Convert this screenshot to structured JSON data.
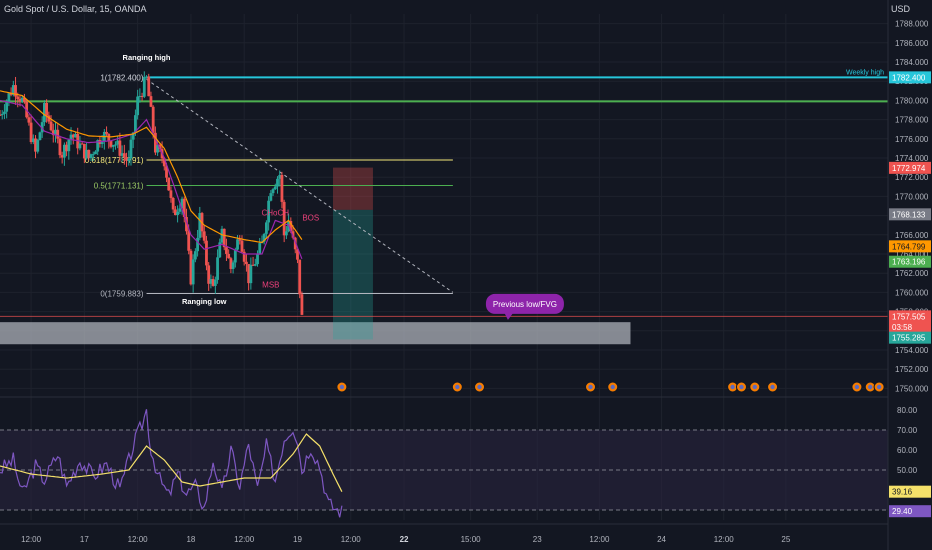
{
  "header": {
    "symbol_title": "Gold Spot / U.S. Dollar, 15, OANDA",
    "currency": "USD"
  },
  "colors": {
    "background": "#131722",
    "grid": "#1e222d",
    "text": "#b2b5be",
    "candle_up": "#26a69a",
    "candle_down": "#ef5350",
    "ema_fast": "#9c27b0",
    "ema_slow": "#ff9800",
    "weekly_high": "#26c6da",
    "level_green": "#4caf50",
    "fib": "#f5e87a",
    "zone": "#b2b5be",
    "rsi_line": "#7e57c2",
    "rsi_ma": "#f5e16a",
    "rsi_band": "#2a2540"
  },
  "chart_data": [
    {
      "type": "candlestick",
      "title": "Gold Spot / U.S. Dollar, 15, OANDA",
      "ylim": [
        1749,
        1789
      ],
      "yticks": [
        1750,
        1752,
        1754,
        1756,
        1758,
        1760,
        1762,
        1764,
        1766,
        1768,
        1770,
        1772,
        1774,
        1776,
        1778,
        1780,
        1782,
        1784,
        1786,
        1788
      ],
      "ytick_labels": [
        "1750.000",
        "1752.000",
        "1754.000",
        "1756.000",
        "1758.000",
        "1760.000",
        "1762.000",
        "1764.000",
        "1766.000",
        "1768.000",
        "1770.000",
        "1772.000",
        "1774.000",
        "1776.000",
        "1778.000",
        "1780.000",
        "1782.000",
        "1784.000",
        "1786.000",
        "1788.000"
      ],
      "xticks": [
        {
          "label": "12:00",
          "t": 12
        },
        {
          "label": "17",
          "t": 24
        },
        {
          "label": "12:00",
          "t": 36
        },
        {
          "label": "18",
          "t": 48
        },
        {
          "label": "12:00",
          "t": 60
        },
        {
          "label": "19",
          "t": 72
        },
        {
          "label": "12:00",
          "t": 84
        },
        {
          "label": "22",
          "t": 96
        },
        {
          "label": "15:00",
          "t": 111
        },
        {
          "label": "23",
          "t": 126
        },
        {
          "label": "12:00",
          "t": 140
        },
        {
          "label": "24",
          "t": 154
        },
        {
          "label": "12:00",
          "t": 168
        },
        {
          "label": "25",
          "t": 182
        }
      ],
      "xlim": [
        5,
        205
      ],
      "price_anchors": [
        {
          "t": 5,
          "p": 1778.5
        },
        {
          "t": 8,
          "p": 1781.5
        },
        {
          "t": 10,
          "p": 1780.0
        },
        {
          "t": 13,
          "p": 1774.5
        },
        {
          "t": 15,
          "p": 1779.0
        },
        {
          "t": 19,
          "p": 1774.5
        },
        {
          "t": 21,
          "p": 1776.5
        },
        {
          "t": 25,
          "p": 1774.0
        },
        {
          "t": 28,
          "p": 1776.5
        },
        {
          "t": 31,
          "p": 1775.5
        },
        {
          "t": 34,
          "p": 1773.5
        },
        {
          "t": 36,
          "p": 1780.0
        },
        {
          "t": 38,
          "p": 1782.2
        },
        {
          "t": 40,
          "p": 1775.0
        },
        {
          "t": 42,
          "p": 1773.8
        },
        {
          "t": 44,
          "p": 1768.0
        },
        {
          "t": 46,
          "p": 1770.0
        },
        {
          "t": 48,
          "p": 1761.5
        },
        {
          "t": 50,
          "p": 1767.8
        },
        {
          "t": 52,
          "p": 1761.5
        },
        {
          "t": 53,
          "p": 1760.5
        },
        {
          "t": 55,
          "p": 1766.0
        },
        {
          "t": 57,
          "p": 1762.5
        },
        {
          "t": 59,
          "p": 1766.2
        },
        {
          "t": 61,
          "p": 1761.5
        },
        {
          "t": 64,
          "p": 1765.0
        },
        {
          "t": 66,
          "p": 1771.0
        },
        {
          "t": 68,
          "p": 1772.3
        },
        {
          "t": 69,
          "p": 1766.0
        },
        {
          "t": 70,
          "p": 1767.5
        },
        {
          "t": 72,
          "p": 1763.0
        },
        {
          "t": 73,
          "p": 1757.3
        }
      ],
      "ema_fast": [
        {
          "t": 5,
          "p": 1780.0
        },
        {
          "t": 10,
          "p": 1779.5
        },
        {
          "t": 15,
          "p": 1776.8
        },
        {
          "t": 20,
          "p": 1776.0
        },
        {
          "t": 25,
          "p": 1775.6
        },
        {
          "t": 30,
          "p": 1775.8
        },
        {
          "t": 35,
          "p": 1776.5
        },
        {
          "t": 38,
          "p": 1778.0
        },
        {
          "t": 42,
          "p": 1774.0
        },
        {
          "t": 45,
          "p": 1770.0
        },
        {
          "t": 48,
          "p": 1766.0
        },
        {
          "t": 51,
          "p": 1764.5
        },
        {
          "t": 55,
          "p": 1765.0
        },
        {
          "t": 60,
          "p": 1764.0
        },
        {
          "t": 64,
          "p": 1764.0
        },
        {
          "t": 67,
          "p": 1767.5
        },
        {
          "t": 70,
          "p": 1767.0
        },
        {
          "t": 73,
          "p": 1763.5
        }
      ],
      "ema_slow": [
        {
          "t": 5,
          "p": 1781.0
        },
        {
          "t": 10,
          "p": 1780.5
        },
        {
          "t": 15,
          "p": 1778.5
        },
        {
          "t": 20,
          "p": 1777.0
        },
        {
          "t": 25,
          "p": 1776.3
        },
        {
          "t": 30,
          "p": 1776.2
        },
        {
          "t": 35,
          "p": 1776.5
        },
        {
          "t": 38,
          "p": 1777.2
        },
        {
          "t": 42,
          "p": 1775.0
        },
        {
          "t": 45,
          "p": 1772.0
        },
        {
          "t": 48,
          "p": 1768.5
        },
        {
          "t": 51,
          "p": 1767.0
        },
        {
          "t": 55,
          "p": 1766.0
        },
        {
          "t": 60,
          "p": 1765.5
        },
        {
          "t": 64,
          "p": 1765.2
        },
        {
          "t": 67,
          "p": 1766.5
        },
        {
          "t": 70,
          "p": 1767.5
        },
        {
          "t": 73,
          "p": 1765.5
        }
      ],
      "levels": [
        {
          "name": "Weekly high",
          "price": 1782.4,
          "from_t": 38,
          "style": "solid",
          "color": "#26c6da",
          "label": "Weekly high",
          "axis_label": "1782.400"
        },
        {
          "name": "green-level",
          "price": 1779.9,
          "from_t": 5,
          "style": "solid",
          "color": "#4caf50"
        },
        {
          "name": "fib-0.618",
          "price": 1773.791,
          "from_t": 38,
          "to_t": 107,
          "style": "solid",
          "color": "#f5e87a",
          "label": "0.618(1773.791)"
        },
        {
          "name": "fib-0.5",
          "price": 1771.131,
          "from_t": 38,
          "to_t": 107,
          "style": "solid",
          "color": "#4caf50",
          "label": "0.5(1771.131)"
        },
        {
          "name": "fib-0",
          "price": 1759.883,
          "from_t": 38,
          "to_t": 107,
          "style": "solid",
          "color": "#b2b5be",
          "label": "0(1759.883)"
        },
        {
          "name": "fib-1",
          "price": 1782.4,
          "label": "1(1782.400)"
        }
      ],
      "trendline": {
        "from": {
          "t": 38,
          "p": 1782.2
        },
        "to": {
          "t": 107,
          "p": 1760.0
        }
      },
      "demand_zone": {
        "from_t": 5,
        "to_t": 147,
        "top": 1756.9,
        "bottom": 1754.6
      },
      "position": {
        "from_t": 80,
        "to_t": 89,
        "entry": 1768.6,
        "stop": 1773.0,
        "target": 1755.1
      },
      "current_price_line": 1757.505,
      "annotations": [
        {
          "text": "Ranging high",
          "t": 38,
          "p": 1784.2
        },
        {
          "text": "Ranging low",
          "t": 51,
          "p": 1758.8
        },
        {
          "text": "CHoCH",
          "t": 67,
          "p": 1768.0
        },
        {
          "text": "BOS",
          "t": 75,
          "p": 1767.5
        },
        {
          "text": "MSB",
          "t": 66,
          "p": 1760.5
        },
        {
          "text": "Previous low/FVG",
          "t": 123,
          "p": 1758.8
        }
      ],
      "axis_price_labels": [
        {
          "text": "1782.400",
          "price": 1782.4,
          "color": "#26c6da"
        },
        {
          "text": "1772.974",
          "price": 1772.974,
          "color": "#ef5350"
        },
        {
          "text": "1768.133",
          "price": 1768.133,
          "color": "#787b86"
        },
        {
          "text": "1764.799",
          "price": 1764.799,
          "color": "#ff9800"
        },
        {
          "text": "1763.196",
          "price": 1763.196,
          "color": "#4caf50"
        },
        {
          "text": "1757.505",
          "price": 1757.505,
          "color": "#ef5350"
        },
        {
          "text": "03:58",
          "price": 1756.4,
          "color": "#ef5350"
        },
        {
          "text": "1755.285",
          "price": 1755.285,
          "color": "#26a69a"
        }
      ],
      "event_markers_t": [
        82,
        108,
        113,
        138,
        143,
        170,
        172,
        175,
        179,
        198,
        201,
        203
      ]
    },
    {
      "type": "line",
      "title": "RSI",
      "ylim": [
        25,
        85
      ],
      "yticks": [
        30,
        40,
        50,
        60,
        70,
        80
      ],
      "ytick_labels": [
        "30.00",
        "40.00",
        "50.00",
        "60.00",
        "70.00",
        "80.00"
      ],
      "bands": [
        30,
        50,
        70
      ],
      "rsi_anchors": [
        {
          "t": 5,
          "v": 50
        },
        {
          "t": 8,
          "v": 55
        },
        {
          "t": 10,
          "v": 38
        },
        {
          "t": 13,
          "v": 52
        },
        {
          "t": 15,
          "v": 45
        },
        {
          "t": 18,
          "v": 58
        },
        {
          "t": 20,
          "v": 42
        },
        {
          "t": 23,
          "v": 55
        },
        {
          "t": 26,
          "v": 47
        },
        {
          "t": 29,
          "v": 53
        },
        {
          "t": 32,
          "v": 40
        },
        {
          "t": 35,
          "v": 62
        },
        {
          "t": 37,
          "v": 73
        },
        {
          "t": 38,
          "v": 80
        },
        {
          "t": 39,
          "v": 60
        },
        {
          "t": 41,
          "v": 45
        },
        {
          "t": 43,
          "v": 37
        },
        {
          "t": 45,
          "v": 48
        },
        {
          "t": 47,
          "v": 38
        },
        {
          "t": 49,
          "v": 42
        },
        {
          "t": 51,
          "v": 31
        },
        {
          "t": 53,
          "v": 55
        },
        {
          "t": 55,
          "v": 38
        },
        {
          "t": 57,
          "v": 60
        },
        {
          "t": 59,
          "v": 42
        },
        {
          "t": 61,
          "v": 63
        },
        {
          "t": 63,
          "v": 40
        },
        {
          "t": 65,
          "v": 62
        },
        {
          "t": 67,
          "v": 45
        },
        {
          "t": 69,
          "v": 66
        },
        {
          "t": 71,
          "v": 72
        },
        {
          "t": 72,
          "v": 65
        },
        {
          "t": 73,
          "v": 50
        },
        {
          "t": 75,
          "v": 62
        },
        {
          "t": 77,
          "v": 52
        },
        {
          "t": 79,
          "v": 33
        },
        {
          "t": 81,
          "v": 30
        },
        {
          "t": 82,
          "v": 29.4
        }
      ],
      "ma_anchors": [
        {
          "t": 5,
          "v": 52
        },
        {
          "t": 12,
          "v": 48
        },
        {
          "t": 20,
          "v": 46
        },
        {
          "t": 28,
          "v": 48
        },
        {
          "t": 34,
          "v": 50
        },
        {
          "t": 38,
          "v": 62
        },
        {
          "t": 42,
          "v": 55
        },
        {
          "t": 46,
          "v": 44
        },
        {
          "t": 50,
          "v": 42
        },
        {
          "t": 55,
          "v": 44
        },
        {
          "t": 60,
          "v": 46
        },
        {
          "t": 66,
          "v": 46
        },
        {
          "t": 71,
          "v": 58
        },
        {
          "t": 74,
          "v": 68
        },
        {
          "t": 77,
          "v": 62
        },
        {
          "t": 80,
          "v": 48
        },
        {
          "t": 82,
          "v": 39.16
        }
      ],
      "axis_value_labels": [
        {
          "text": "39.16",
          "value": 39.16,
          "color": "#f5e16a"
        },
        {
          "text": "29.40",
          "value": 29.4,
          "color": "#7e57c2"
        }
      ]
    }
  ]
}
